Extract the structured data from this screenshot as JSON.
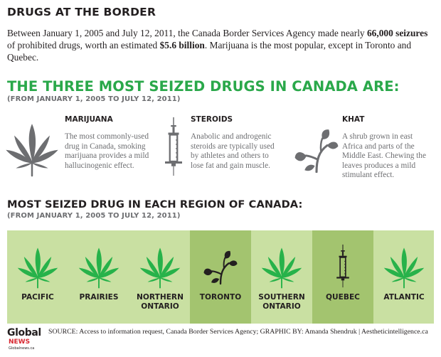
{
  "header": {
    "title": "DRUGS AT THE BORDER",
    "intro_1": "Between January 1, 2005 and July 12, 2011, the Canada Border Services Agency made nearly ",
    "intro_bold_1": "66,000 seizures",
    "intro_2": " of prohibited drugs, worth an estimated ",
    "intro_bold_2": "$5.6 billion",
    "intro_3": ". Marijuana is the most popular, except in Toronto and Quebec."
  },
  "top_three": {
    "title": "THE THREE MOST SEIZED DRUGS IN CANADA ARE:",
    "date_range": "(FROM JANUARY 1, 2005 TO JULY 12, 2011)",
    "drugs": [
      {
        "name": "MARIJUANA",
        "icon": "cannabis-leaf-icon",
        "description": "The most commonly-used drug in Canada, smoking marijuana provides a mild hallucinogenic effect."
      },
      {
        "name": "STEROIDS",
        "icon": "syringe-icon",
        "description": "Anabolic and androgenic steroids are typically used by athletes and others to lose fat and gain muscle."
      },
      {
        "name": "KHAT",
        "icon": "khat-leaves-icon",
        "description": "A shrub grown in east Africa and parts of the Middle East. Chewing the leaves produces a mild stimulant effect."
      }
    ]
  },
  "regions": {
    "title": "MOST SEIZED DRUG IN EACH REGION OF CANADA:",
    "date_range": "(FROM JANUARY 1, 2005 TO JULY 12, 2011)",
    "items": [
      {
        "label_1": "PACIFIC",
        "label_2": "",
        "drug_icon": "cannabis-leaf-icon"
      },
      {
        "label_1": "PRAIRIES",
        "label_2": "",
        "drug_icon": "cannabis-leaf-icon"
      },
      {
        "label_1": "NORTHERN",
        "label_2": "ONTARIO",
        "drug_icon": "cannabis-leaf-icon"
      },
      {
        "label_1": "TORONTO",
        "label_2": "",
        "drug_icon": "khat-leaves-icon"
      },
      {
        "label_1": "SOUTHERN",
        "label_2": "ONTARIO",
        "drug_icon": "cannabis-leaf-icon"
      },
      {
        "label_1": "QUEBEC",
        "label_2": "",
        "drug_icon": "syringe-icon"
      },
      {
        "label_1": "ATLANTIC",
        "label_2": "",
        "drug_icon": "cannabis-leaf-icon"
      }
    ]
  },
  "footer": {
    "logo_global": "Global",
    "logo_news": "NEWS",
    "logo_url": "Globalnews.ca",
    "source": "SOURCE: Access to information request, Canada Border Services Agency; GRAPHIC BY: Amanda Shendruk | Aestheticintelligence.ca"
  },
  "colors": {
    "green_title": "#2aa84a",
    "leaf_green": "#27b24a",
    "band_light": "#c9e0a2",
    "band_dark": "#a3c46f",
    "icon_grey": "#6d6e71",
    "news_red": "#d7262f"
  }
}
